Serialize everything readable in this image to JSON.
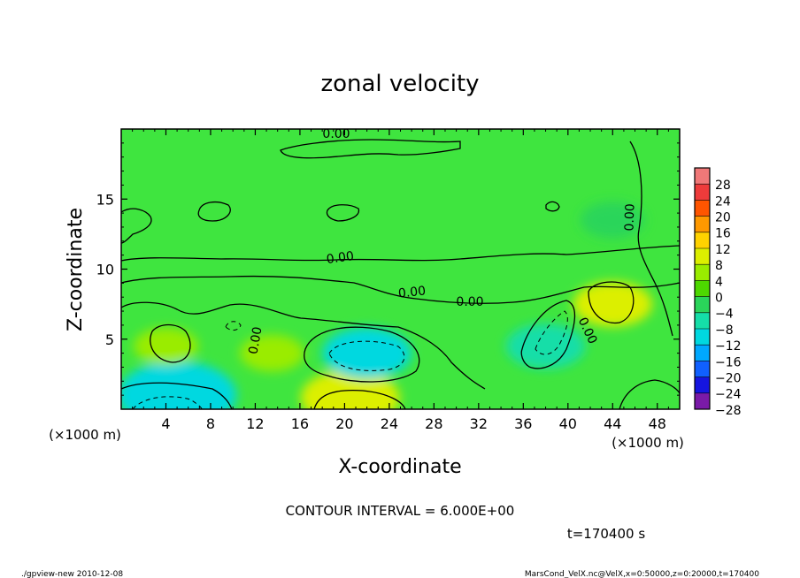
{
  "chart_data": {
    "type": "heatmap",
    "title": "zonal velocity",
    "xlabel": "X-coordinate",
    "ylabel": "Z-coordinate",
    "x_unit_label": "(×1000 m)",
    "y_unit_label": "(×1000 m)",
    "xlim": [
      0,
      50
    ],
    "ylim": [
      0,
      20
    ],
    "x_ticks": [
      4,
      8,
      12,
      16,
      20,
      24,
      28,
      32,
      36,
      40,
      44,
      48
    ],
    "y_ticks": [
      5,
      10,
      15
    ],
    "colorbar_levels": [
      28,
      24,
      20,
      16,
      12,
      8,
      4,
      0,
      -4,
      -8,
      -12,
      -16,
      -20,
      -24,
      -28
    ],
    "contour_interval_label": "CONTOUR INTERVAL = 6.000E+00",
    "contour_labels": [
      "0.00",
      "0.00",
      "0.00",
      "0.00",
      "0.00",
      "0.00",
      "0.00"
    ],
    "time_label": "t=170400 s",
    "grid": false,
    "legend": "colorbar-right",
    "field_features": [
      {
        "x": 5,
        "z": 1.0,
        "value": -12
      },
      {
        "x": 4,
        "z": 4.5,
        "value": 6
      },
      {
        "x": 20.5,
        "z": 0.8,
        "value": 10
      },
      {
        "x": 22,
        "z": 4.0,
        "value": -9
      },
      {
        "x": 38,
        "z": 4.5,
        "value": -8
      },
      {
        "x": 44,
        "z": 7.5,
        "value": 8
      },
      {
        "x": 44,
        "z": 13.5,
        "value": -3
      },
      {
        "x": 13.5,
        "z": 4.0,
        "value": 4
      }
    ]
  },
  "footer": {
    "left": "./gpview-new  2010-12-08",
    "right": "MarsCond_VelX.nc@VelX,x=0:50000,z=0:20000,t=170400"
  },
  "colors": {
    "background_field": "#3ee63e",
    "frame": "#000000",
    "colorbar": [
      "#f07878",
      "#ee3b3b",
      "#ff5500",
      "#ff9900",
      "#ffd200",
      "#dcef00",
      "#9aec00",
      "#4dd800",
      "#2ad55a",
      "#15dea8",
      "#00d8e0",
      "#00a8ff",
      "#1060ff",
      "#1515e0",
      "#7a1aa8"
    ]
  }
}
